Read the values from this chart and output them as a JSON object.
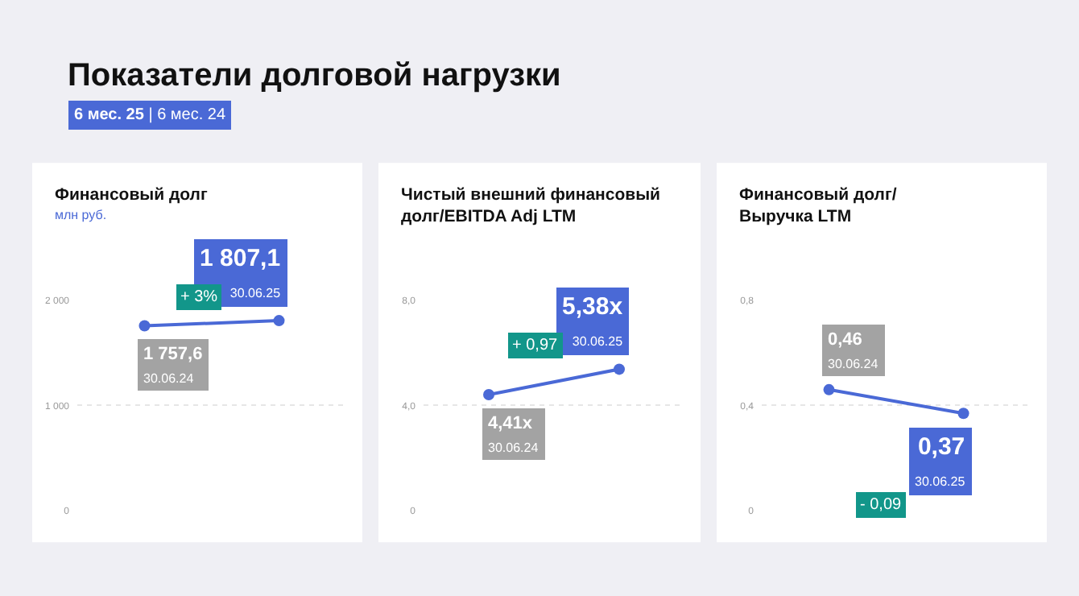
{
  "chart_data": [
    {
      "type": "other",
      "title": "Показатели долговой нагрузки",
      "subtitle": "6 мес. 25 | 6 мес. 24"
    },
    {
      "type": "line",
      "title": "Финансовый долг",
      "subtitle": "млн руб.",
      "categories": [
        "30.06.24",
        "30.06.25"
      ],
      "tick_labels": "y",
      "grid": "y",
      "marker": "circle",
      "ylim": [
        0,
        2000
      ],
      "yticks": [
        0,
        {
          "value": 1000,
          "label": "1 000"
        },
        {
          "value": 2000,
          "label": "2 000"
        }
      ],
      "annotations": [
        "+ 3%"
      ],
      "series": [
        {
          "color": "#4a69d6",
          "values": [
            1757.6,
            1807.1
          ],
          "value_labels": [
            "1 757,6",
            "1 807,1"
          ]
        }
      ]
    },
    {
      "type": "line",
      "title": "Чистый внешний финансовый\nдолг/EBITDA Adj LTM",
      "categories": [
        "30.06.24",
        "30.06.25"
      ],
      "tick_labels": "y",
      "grid": "y",
      "marker": "circle",
      "ylim": [
        0,
        8
      ],
      "yticks": [
        0,
        {
          "value": 4,
          "label": "4,0"
        },
        {
          "value": 8,
          "label": "8,0"
        }
      ],
      "annotations": [
        "+ 0,97"
      ],
      "series": [
        {
          "color": "#4a69d6",
          "values": [
            4.41,
            5.38
          ],
          "value_labels": [
            "4,41x",
            "5,38x"
          ]
        }
      ]
    },
    {
      "type": "line",
      "title": "Финансовый долг/\nВыручка LTM",
      "categories": [
        "30.06.24",
        "30.06.25"
      ],
      "tick_labels": "y",
      "grid": "y",
      "marker": "circle",
      "ylim": [
        0,
        0.8
      ],
      "yticks": [
        0,
        {
          "value": 0.4,
          "label": "0,4"
        },
        {
          "value": 0.8,
          "label": "0,8"
        }
      ],
      "annotations": [
        "- 0,09"
      ],
      "series": [
        {
          "color": "#4a69d6",
          "values": [
            0.46,
            0.37
          ],
          "value_labels": [
            "0,46",
            "0,37"
          ]
        }
      ]
    }
  ]
}
